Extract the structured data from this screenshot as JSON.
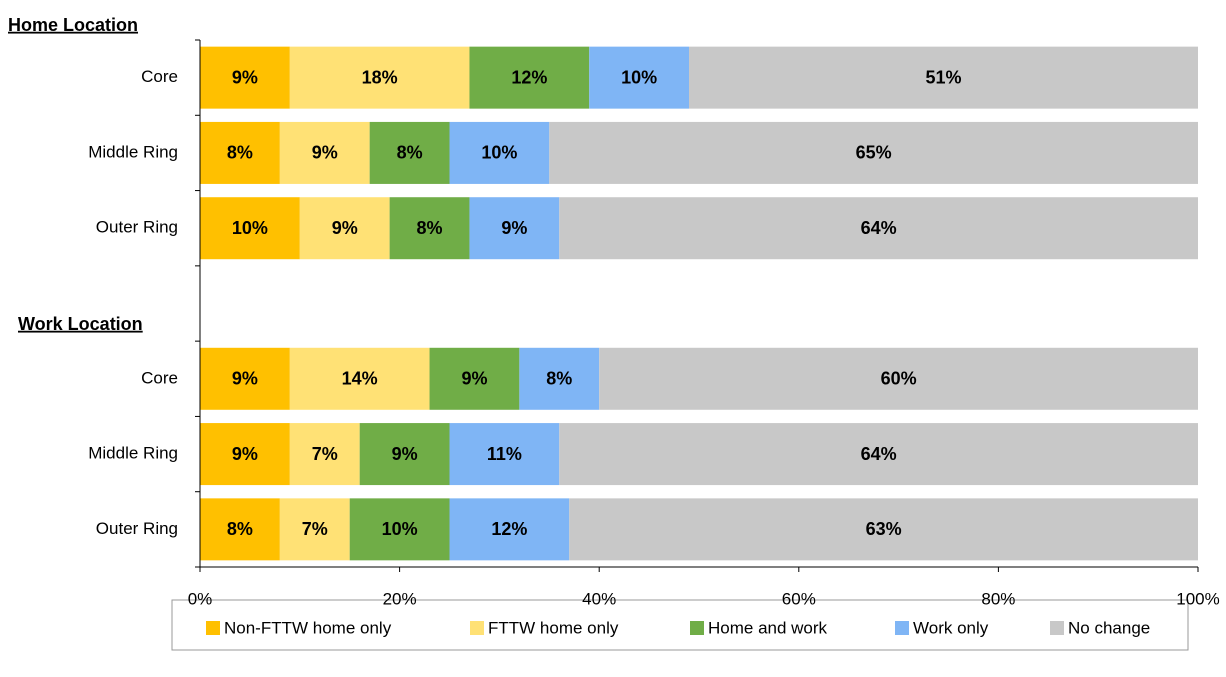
{
  "chart_data": {
    "type": "stacked_bar_horizontal",
    "annotations": [
      "Home Location",
      "Work Location"
    ],
    "categories": [
      "Core",
      "Middle Ring",
      "Outer Ring",
      null,
      "Core",
      "Middle Ring",
      "Outer Ring"
    ],
    "series": [
      {
        "name": "Non-FTTW home only",
        "color": "#FFC000",
        "values": [
          9,
          8,
          10,
          null,
          9,
          9,
          8
        ],
        "value_labels": [
          "9%",
          "8%",
          "10%",
          null,
          "9%",
          "9%",
          "8%"
        ]
      },
      {
        "name": "FTTW home only",
        "color": "#FFE175",
        "values": [
          18,
          9,
          9,
          null,
          14,
          7,
          7
        ],
        "value_labels": [
          "18%",
          "9%",
          "9%",
          null,
          "14%",
          "7%",
          "7%"
        ]
      },
      {
        "name": "Home and work",
        "color": "#70AD47",
        "values": [
          12,
          8,
          8,
          null,
          9,
          9,
          10
        ],
        "value_labels": [
          "12%",
          "8%",
          "8%",
          null,
          "9%",
          "9%",
          "10%"
        ]
      },
      {
        "name": "Work only",
        "color": "#7FB5F5",
        "values": [
          10,
          10,
          9,
          null,
          8,
          11,
          12
        ],
        "value_labels": [
          "10%",
          "10%",
          "9%",
          null,
          "8%",
          "11%",
          "12%"
        ]
      },
      {
        "name": "No change",
        "color": "#C8C8C8",
        "values": [
          51,
          65,
          64,
          null,
          60,
          64,
          63
        ],
        "value_labels": [
          "51%",
          "65%",
          "64%",
          null,
          "60%",
          "64%",
          "63%"
        ]
      }
    ],
    "xlim": [
      0,
      100
    ],
    "xticks": [
      {
        "value": 0,
        "label": "0%"
      },
      {
        "value": 20,
        "label": "20%"
      },
      {
        "value": 40,
        "label": "40%"
      },
      {
        "value": 60,
        "label": "60%"
      },
      {
        "value": 80,
        "label": "80%"
      },
      {
        "value": 100,
        "label": "100%"
      }
    ],
    "legend": "bottom"
  }
}
